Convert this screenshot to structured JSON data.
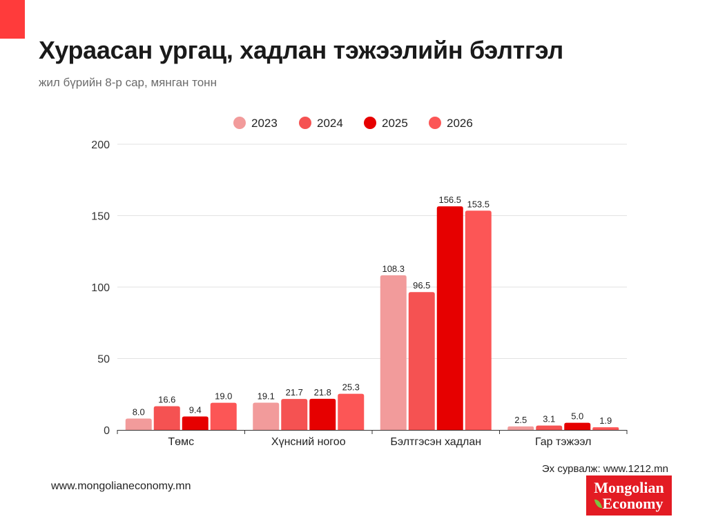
{
  "title": "Хураасан ургац, хадлан тэжээлийн бэлтгэл",
  "subtitle": "жил бүрийн 8-р сар, мянган тонн",
  "footer_url": "www.mongolianeconomy.mn",
  "source": "Эх сурвалж: www.1212.mn",
  "logo": {
    "line1": "Mongolian",
    "line2": "Economy",
    "icon": "leaf-icon",
    "background": "#e31b23"
  },
  "chart_data": {
    "type": "bar",
    "categories": [
      "Төмс",
      "Хүнсний ногоо",
      "Бэлтгэсэн хадлан",
      "Гар тэжээл"
    ],
    "series": [
      {
        "name": "2023",
        "color": "#f29b9b",
        "values": [
          8.0,
          19.1,
          108.3,
          2.5
        ]
      },
      {
        "name": "2024",
        "color": "#f55252",
        "values": [
          16.6,
          21.7,
          96.5,
          3.1
        ]
      },
      {
        "name": "2025",
        "color": "#e60000",
        "values": [
          9.4,
          21.8,
          156.5,
          5.0
        ]
      },
      {
        "name": "2026",
        "color": "#fc5656",
        "values": [
          19.0,
          25.3,
          153.5,
          1.9
        ]
      }
    ],
    "ylim": [
      0,
      200
    ],
    "yticks": [
      0,
      50,
      100,
      150,
      200
    ],
    "grid": true,
    "legend": "top-center",
    "data_labels": true
  }
}
